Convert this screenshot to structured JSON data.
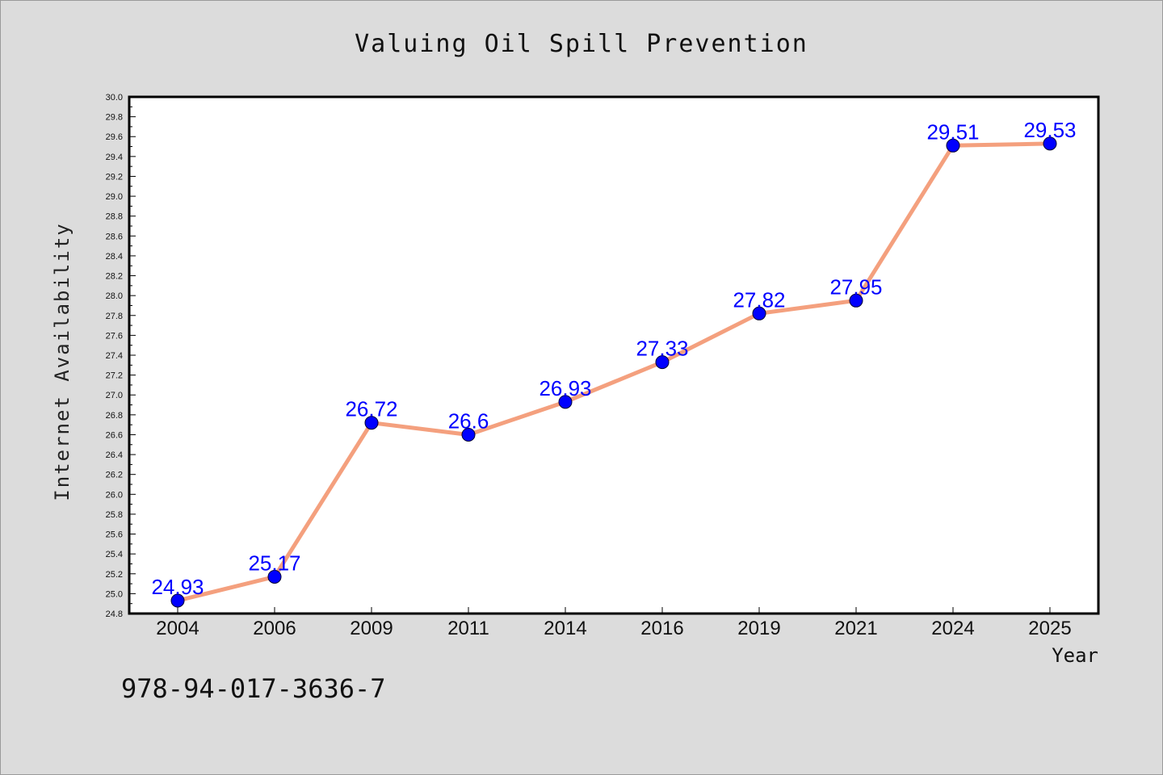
{
  "footer_text": "978-94-017-3636-7",
  "colors": {
    "background": "#dcdcdc",
    "plot_background": "#ffffff",
    "line": "#f4a07e",
    "marker": "#0000ff",
    "data_label": "#0000ff"
  },
  "chart_data": {
    "type": "line",
    "title": "Valuing Oil Spill Prevention",
    "xlabel": "Year",
    "ylabel": "Internet Availability",
    "categories": [
      "2004",
      "2006",
      "2009",
      "2011",
      "2014",
      "2016",
      "2019",
      "2021",
      "2024",
      "2025"
    ],
    "values": [
      24.93,
      25.17,
      26.72,
      26.6,
      26.93,
      27.33,
      27.82,
      27.95,
      29.51,
      29.53
    ],
    "data_labels": [
      "24.93",
      "25.17",
      "26.72",
      "26.6",
      "26.93",
      "27.33",
      "27.82",
      "27.95",
      "29.51",
      "29.53"
    ],
    "ylim": [
      24.8,
      30.0
    ],
    "yticks": [
      "24.8",
      "25.0",
      "25.2",
      "25.4",
      "25.6",
      "25.8",
      "26.0",
      "26.2",
      "26.4",
      "26.6",
      "26.8",
      "27.0",
      "27.2",
      "27.4",
      "27.6",
      "27.8",
      "28.0",
      "28.2",
      "28.4",
      "28.6",
      "28.8",
      "29.0",
      "29.2",
      "29.4",
      "29.6",
      "29.8",
      "30.0"
    ],
    "grid": false,
    "legend": "none"
  }
}
